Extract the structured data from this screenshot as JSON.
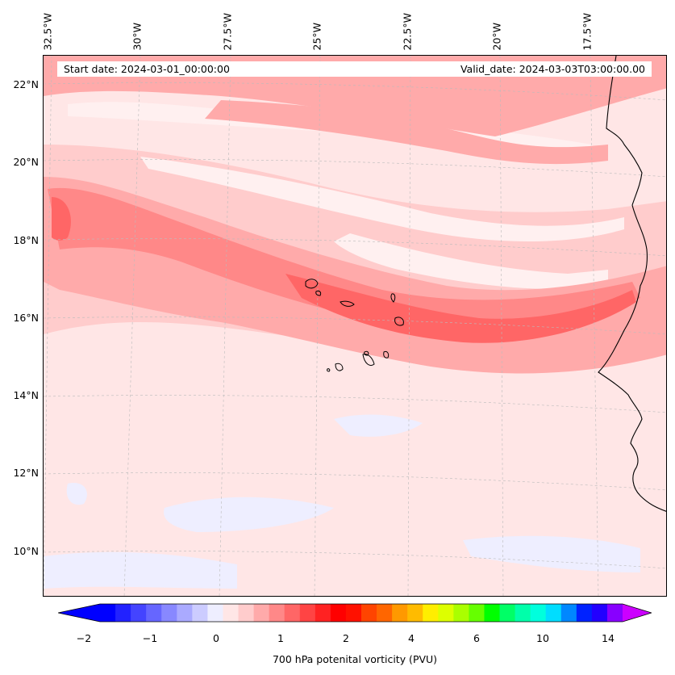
{
  "map": {
    "title_start": "Start date: 2024-03-01_00:00:00",
    "title_valid": "Valid_date: 2024-03-03T03:00:00.00",
    "lon_labels": [
      "32.5°W",
      "30°W",
      "27.5°W",
      "25°W",
      "22.5°W",
      "20°W",
      "17.5°W"
    ],
    "lat_labels": [
      "22°N",
      "20°N",
      "18°N",
      "16°N",
      "14°N",
      "12°N",
      "10°N"
    ],
    "coast_color": "#000000",
    "gridline_color": "#bbbbbb"
  },
  "colorbar": {
    "title": "700 hPa potenital vorticity (PVU)",
    "tick_labels": [
      "−2",
      "−1",
      "0",
      "1",
      "2",
      "4",
      "6",
      "10",
      "14"
    ],
    "colors": [
      "#0000ff",
      "#2222ff",
      "#4444ff",
      "#6666ff",
      "#8888ff",
      "#aaaaff",
      "#ccccff",
      "#eeeeff",
      "#ffe6e6",
      "#ffcccc",
      "#ffaaaa",
      "#ff8888",
      "#ff6666",
      "#ff4444",
      "#ff2222",
      "#ff0000",
      "#ff1100",
      "#ff4400",
      "#ff6600",
      "#ff9900",
      "#ffbb00",
      "#ffee00",
      "#ddff00",
      "#aaff00",
      "#66ff00",
      "#00ff00",
      "#00ff66",
      "#00ffaa",
      "#00ffdd",
      "#00ddff",
      "#0088ff",
      "#0022ff",
      "#2200ff",
      "#8800ff"
    ],
    "under_color": "#0000ff",
    "over_color": "#cc00ff"
  },
  "field": {
    "background": "#ffe6e6",
    "level_1": "#ffcccc",
    "level_2": "#ffaaaa",
    "level_3": "#ff8888",
    "level_4": "#ff6666",
    "light": "#fff0f0",
    "negative": "#eeeeff"
  }
}
